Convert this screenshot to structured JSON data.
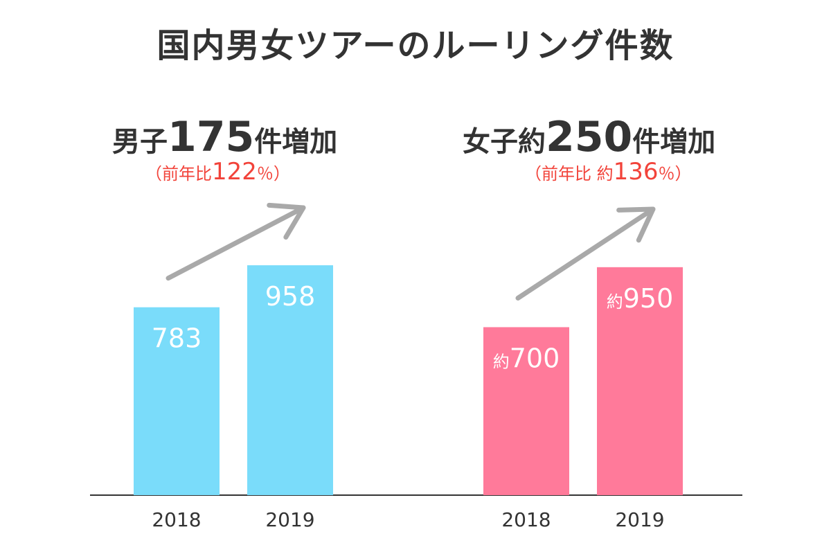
{
  "title": "国内男女ツアーのルーリング件数",
  "colors": {
    "male": "#7adcfa",
    "female": "#ff7a9a",
    "arrow": "#a9a9a9",
    "accent": "#f2433a",
    "text": "#333333",
    "axis": "#333333"
  },
  "panels": [
    {
      "headline": {
        "pre": "男子",
        "num": "175",
        "post": "件増加"
      },
      "sub": {
        "open": "（",
        "label": "前年比",
        "value": "122",
        "unit": "％",
        "close": "）"
      }
    },
    {
      "headline": {
        "pre": "女子約",
        "num": "250",
        "post": "件増加"
      },
      "sub": {
        "open": "（",
        "label": "前年比 約",
        "value": "136",
        "unit": "％",
        "close": "）"
      }
    }
  ],
  "chart_data": [
    {
      "type": "bar",
      "categories": [
        "2018",
        "2019"
      ],
      "values": [
        783,
        958
      ],
      "value_labels": [
        "783",
        "958"
      ],
      "color": "#7adcfa",
      "ylim": [
        0,
        1110
      ]
    },
    {
      "type": "bar",
      "categories": [
        "2018",
        "2019"
      ],
      "values": [
        700,
        950
      ],
      "value_labels": [
        "約700",
        "約950"
      ],
      "color": "#ff7a9a",
      "ylim": [
        0,
        1110
      ]
    }
  ]
}
